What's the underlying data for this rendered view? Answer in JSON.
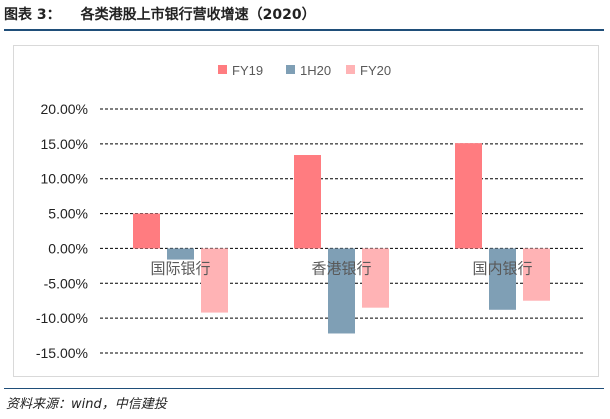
{
  "figure": {
    "label": "图表 3：",
    "title": "各类港股上市银行营收增速（2020）",
    "source": "资料来源：wind，中信建投"
  },
  "chart_data": {
    "type": "bar",
    "categories": [
      "国际银行",
      "香港银行",
      "国内银行"
    ],
    "series": [
      {
        "name": "FY19",
        "color": "#ff7c80",
        "values": [
          5.0,
          13.4,
          15.1
        ]
      },
      {
        "name": "1H20",
        "color": "#7f9fb5",
        "values": [
          -1.6,
          -12.2,
          -8.8
        ]
      },
      {
        "name": "FY20",
        "color": "#ffb3b5",
        "values": [
          -9.2,
          -8.5,
          -7.5
        ]
      }
    ],
    "yticks": [
      20,
      15,
      10,
      5,
      0,
      -5,
      -10,
      -15
    ],
    "ytick_labels": [
      "20.00%",
      "15.00%",
      "10.00%",
      "5.00%",
      "0.00%",
      "-5.00%",
      "-10.00%",
      "-15.00%"
    ],
    "ylim": [
      -15,
      20
    ],
    "legend_position": "top-center",
    "grid": true
  }
}
